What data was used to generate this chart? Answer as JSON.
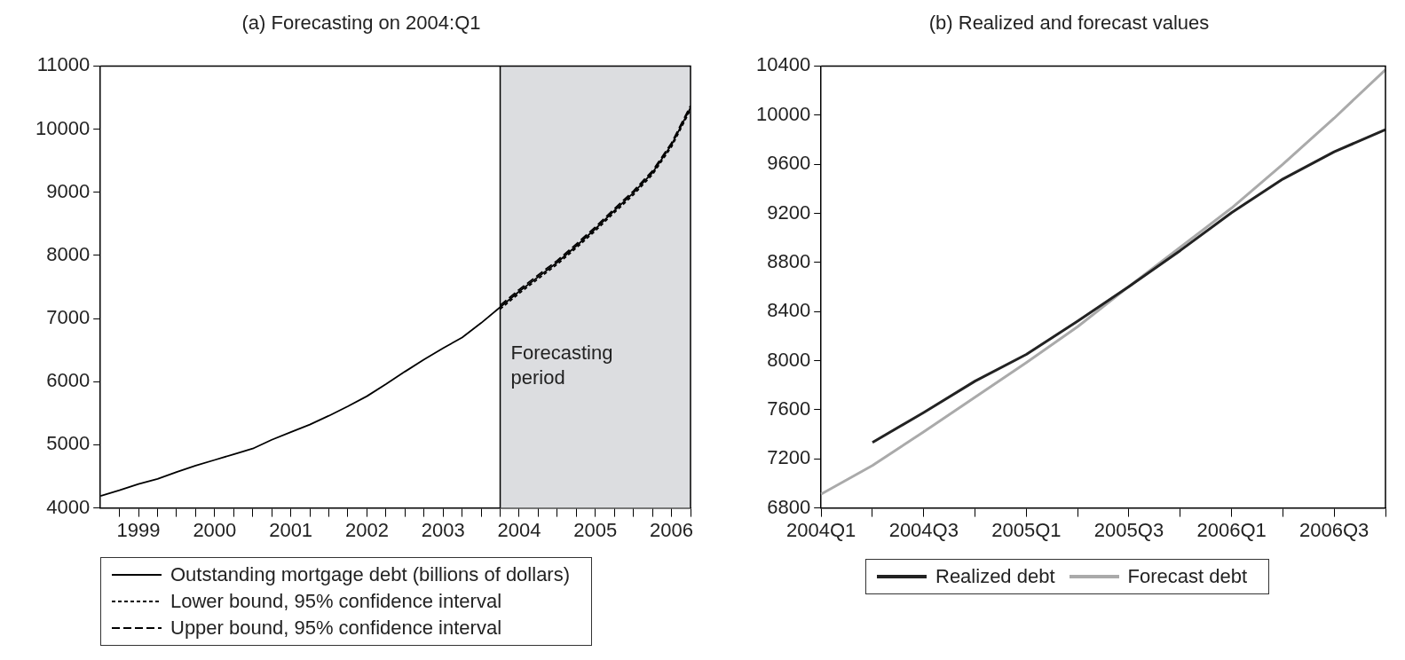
{
  "chart_data": [
    {
      "type": "line",
      "title": "(a) Forecasting on 2004:Q1",
      "xlim": [
        1999,
        2006.75
      ],
      "ylim": [
        4000,
        11000
      ],
      "yticks": [
        4000,
        5000,
        6000,
        7000,
        8000,
        9000,
        10000,
        11000
      ],
      "xticks": [
        {
          "value": 1999.25,
          "label": null
        },
        {
          "value": 1999.5,
          "label": "1999"
        },
        {
          "value": 1999.75,
          "label": null
        },
        {
          "value": 2000,
          "label": null
        },
        {
          "value": 2000.25,
          "label": null
        },
        {
          "value": 2000.5,
          "label": "2000"
        },
        {
          "value": 2000.75,
          "label": null
        },
        {
          "value": 2001,
          "label": null
        },
        {
          "value": 2001.25,
          "label": null
        },
        {
          "value": 2001.5,
          "label": "2001"
        },
        {
          "value": 2001.75,
          "label": null
        },
        {
          "value": 2002,
          "label": null
        },
        {
          "value": 2002.25,
          "label": null
        },
        {
          "value": 2002.5,
          "label": "2002"
        },
        {
          "value": 2002.75,
          "label": null
        },
        {
          "value": 2003,
          "label": null
        },
        {
          "value": 2003.25,
          "label": null
        },
        {
          "value": 2003.5,
          "label": "2003"
        },
        {
          "value": 2003.75,
          "label": null
        },
        {
          "value": 2004,
          "label": null
        },
        {
          "value": 2004.25,
          "label": null
        },
        {
          "value": 2004.5,
          "label": "2004"
        },
        {
          "value": 2004.75,
          "label": null
        },
        {
          "value": 2005,
          "label": null
        },
        {
          "value": 2005.25,
          "label": null
        },
        {
          "value": 2005.5,
          "label": "2005"
        },
        {
          "value": 2005.75,
          "label": null
        },
        {
          "value": 2006,
          "label": null
        },
        {
          "value": 2006.25,
          "label": null
        },
        {
          "value": 2006.5,
          "label": "2006"
        },
        {
          "value": 2006.75,
          "label": null
        }
      ],
      "series": [
        {
          "name": "Outstanding mortgage debt (billions of dollars)",
          "color": "#000000",
          "line_style": "solid",
          "x": [
            1999,
            1999.25,
            1999.5,
            1999.75,
            2000,
            2000.25,
            2000.5,
            2000.75,
            2001,
            2001.25,
            2001.5,
            2001.75,
            2002,
            2002.25,
            2002.5,
            2002.75,
            2003,
            2003.25,
            2003.5,
            2003.75,
            2004,
            2004.25,
            2004.5,
            2004.75,
            2005,
            2005.25,
            2005.5,
            2005.75,
            2006,
            2006.25,
            2006.5,
            2006.75
          ],
          "values": [
            4190,
            4280,
            4380,
            4460,
            4570,
            4670,
            4760,
            4850,
            4940,
            5080,
            5200,
            5320,
            5460,
            5610,
            5770,
            5960,
            6160,
            6350,
            6530,
            6700,
            6930,
            7180,
            7430,
            7660,
            7890,
            8150,
            8420,
            8710,
            8990,
            9310,
            9750,
            10340
          ]
        },
        {
          "name": "Lower bound, 95% confidence interval",
          "color": "#000000",
          "line_style": "dotted",
          "x": [
            2004.25,
            2004.5,
            2004.75,
            2005,
            2005.25,
            2005.5,
            2005.75,
            2006,
            2006.25,
            2006.5,
            2006.75
          ],
          "values": [
            7150,
            7400,
            7630,
            7860,
            8120,
            8390,
            8680,
            8960,
            9280,
            9720,
            10310
          ]
        },
        {
          "name": "Upper bound, 95% confidence interval",
          "color": "#000000",
          "line_style": "dashed",
          "x": [
            2004.25,
            2004.5,
            2004.75,
            2005,
            2005.25,
            2005.5,
            2005.75,
            2006,
            2006.25,
            2006.5,
            2006.75
          ],
          "values": [
            7210,
            7460,
            7690,
            7920,
            8180,
            8450,
            8740,
            9020,
            9340,
            9780,
            10370
          ]
        }
      ],
      "bands": [
        {
          "axis": "x",
          "from": 2004.25,
          "to": 2006.75,
          "label": "Forecasting period",
          "color": "#dcdde0"
        }
      ],
      "ref_lines": [
        {
          "axis": "x",
          "value": 2004.25,
          "color": "#000000"
        }
      ],
      "grid": false,
      "legend": "bottom"
    },
    {
      "type": "line",
      "title": "(b) Realized and forecast values",
      "categories": [
        "2004Q1",
        null,
        "2004Q3",
        null,
        "2005Q1",
        null,
        "2005Q3",
        null,
        "2006Q1",
        null,
        "2006Q3",
        null
      ],
      "ylim": [
        6800,
        10400
      ],
      "yticks": [
        6800,
        7200,
        7600,
        8000,
        8400,
        8800,
        9200,
        9600,
        10000,
        10400
      ],
      "series": [
        {
          "name": "Realized debt",
          "color": "#222222",
          "values": [
            null,
            7334,
            7578,
            7833,
            8051,
            8322,
            8604,
            8897,
            9205,
            9479,
            9701,
            9882
          ]
        },
        {
          "name": "Forecast debt",
          "color": "#aaaaaa",
          "values": [
            6913,
            7146,
            7420,
            7702,
            7984,
            8277,
            8604,
            8923,
            9243,
            9600,
            9975,
            10370
          ]
        }
      ],
      "grid": false,
      "legend": "bottom"
    }
  ]
}
